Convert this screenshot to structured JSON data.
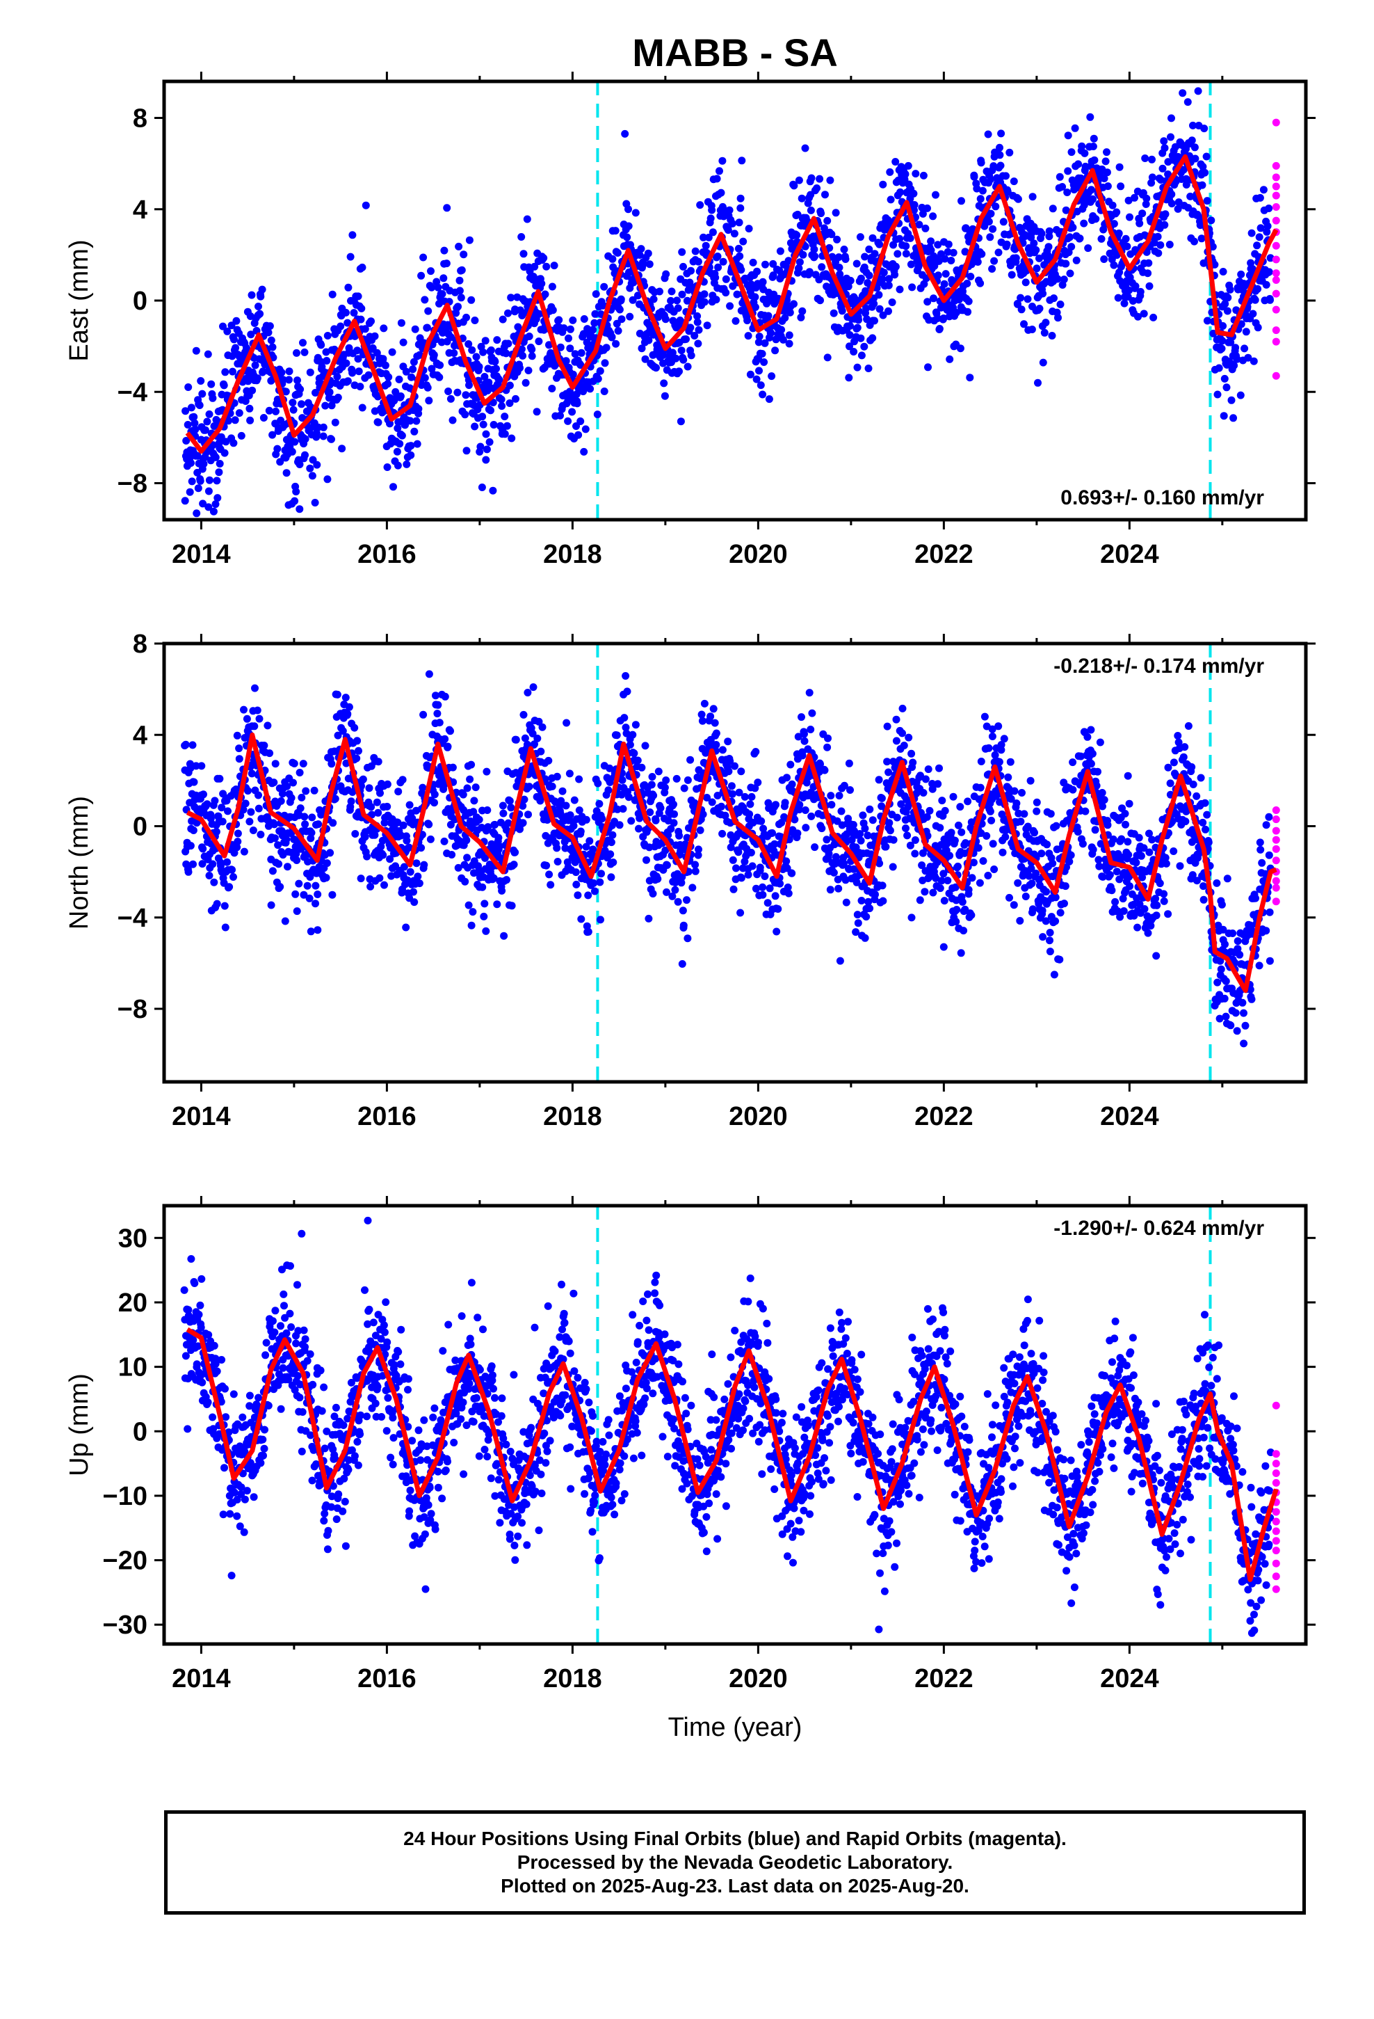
{
  "page_title": "MABB - SA",
  "colors": {
    "final_orbits": "#0000ff",
    "rapid_orbits": "#ff00ff",
    "model_fit": "#ff0000",
    "equipment_change": "#00e5ee",
    "frame": "#000000"
  },
  "footer": {
    "line1": "24 Hour Positions Using Final Orbits (blue) and Rapid Orbits (magenta).",
    "line2": "Processed by the Nevada Geodetic Laboratory.",
    "line3": "Plotted on 2025-Aug-23. Last data on 2025-Aug-20."
  },
  "chart_data": [
    {
      "type": "scatter",
      "name": "east",
      "ylabel": "East (mm)",
      "xlabel": "",
      "xlim": [
        2013.6,
        2025.9
      ],
      "ylim": [
        -9.6,
        9.6
      ],
      "xticks": [
        2014,
        2016,
        2018,
        2020,
        2022,
        2024
      ],
      "xtick_labels": [
        "2014",
        "2016",
        "2018",
        "2020",
        "2022",
        "2024"
      ],
      "yticks": [
        -8,
        -4,
        0,
        4,
        8
      ],
      "ytick_labels": [
        "−8",
        "−4",
        "0",
        "4",
        "8"
      ],
      "annotation": "0.693+/- 0.160 mm/yr",
      "annotation_position": "bottom-right",
      "vlines": [
        2018.27,
        2024.87
      ],
      "final_orbits_range": [
        2013.82,
        2025.52
      ],
      "rapid_orbits_x": 2025.58,
      "rapid_orbits_y": [
        7.8,
        5.9,
        5.4,
        5.0,
        4.6,
        4.1,
        3.5,
        3.0,
        2.4,
        1.8,
        1.2,
        0.9,
        0.3,
        -0.4,
        -1.3,
        -1.8,
        -3.3
      ],
      "model_fit": [
        [
          2013.85,
          -5.8
        ],
        [
          2014.0,
          -6.6
        ],
        [
          2014.2,
          -5.6
        ],
        [
          2014.4,
          -3.5
        ],
        [
          2014.62,
          -1.5
        ],
        [
          2014.8,
          -3.3
        ],
        [
          2015.0,
          -5.9
        ],
        [
          2015.2,
          -5.0
        ],
        [
          2015.45,
          -2.5
        ],
        [
          2015.65,
          -0.9
        ],
        [
          2015.85,
          -3.0
        ],
        [
          2016.05,
          -5.2
        ],
        [
          2016.25,
          -4.6
        ],
        [
          2016.45,
          -1.8
        ],
        [
          2016.65,
          -0.2
        ],
        [
          2016.85,
          -2.7
        ],
        [
          2017.05,
          -4.5
        ],
        [
          2017.25,
          -3.8
        ],
        [
          2017.45,
          -1.5
        ],
        [
          2017.63,
          0.4
        ],
        [
          2017.85,
          -2.6
        ],
        [
          2018.0,
          -3.8
        ],
        [
          2018.25,
          -2.2
        ],
        [
          2018.4,
          0.0
        ],
        [
          2018.6,
          2.2
        ],
        [
          2018.8,
          -0.2
        ],
        [
          2019.0,
          -2.1
        ],
        [
          2019.2,
          -1.2
        ],
        [
          2019.4,
          1.2
        ],
        [
          2019.6,
          2.9
        ],
        [
          2019.8,
          0.8
        ],
        [
          2020.0,
          -1.3
        ],
        [
          2020.2,
          -0.8
        ],
        [
          2020.4,
          2.0
        ],
        [
          2020.6,
          3.6
        ],
        [
          2020.8,
          1.2
        ],
        [
          2021.0,
          -0.6
        ],
        [
          2021.2,
          0.2
        ],
        [
          2021.4,
          2.8
        ],
        [
          2021.6,
          4.3
        ],
        [
          2021.8,
          1.5
        ],
        [
          2022.0,
          0.0
        ],
        [
          2022.2,
          1.0
        ],
        [
          2022.4,
          3.6
        ],
        [
          2022.6,
          5.0
        ],
        [
          2022.8,
          2.5
        ],
        [
          2023.0,
          0.8
        ],
        [
          2023.2,
          1.8
        ],
        [
          2023.4,
          4.2
        ],
        [
          2023.6,
          5.7
        ],
        [
          2023.8,
          3.0
        ],
        [
          2024.0,
          1.4
        ],
        [
          2024.2,
          2.6
        ],
        [
          2024.4,
          5.0
        ],
        [
          2024.6,
          6.3
        ],
        [
          2024.8,
          4.0
        ],
        [
          2024.87,
          1.5
        ],
        [
          2024.95,
          -1.4
        ],
        [
          2025.1,
          -1.5
        ],
        [
          2025.3,
          0.5
        ],
        [
          2025.5,
          2.5
        ],
        [
          2025.58,
          3.1
        ]
      ]
    },
    {
      "type": "scatter",
      "name": "north",
      "ylabel": "North (mm)",
      "xlabel": "",
      "xlim": [
        2013.6,
        2025.9
      ],
      "ylim": [
        -11.2,
        8.0
      ],
      "xticks": [
        2014,
        2016,
        2018,
        2020,
        2022,
        2024
      ],
      "xtick_labels": [
        "2014",
        "2016",
        "2018",
        "2020",
        "2022",
        "2024"
      ],
      "yticks": [
        -8,
        -4,
        0,
        4,
        8
      ],
      "ytick_labels": [
        "−8",
        "−4",
        "0",
        "4",
        "8"
      ],
      "annotation": "-0.218+/- 0.174 mm/yr",
      "annotation_position": "top-right",
      "vlines": [
        2018.27,
        2024.87
      ],
      "final_orbits_range": [
        2013.82,
        2025.52
      ],
      "rapid_orbits_x": 2025.58,
      "rapid_orbits_y": [
        0.7,
        0.3,
        -0.2,
        -0.6,
        -1.0,
        -1.5,
        -2.0,
        -2.4,
        -2.7,
        -3.3
      ],
      "model_fit": [
        [
          2013.85,
          0.6
        ],
        [
          2014.0,
          0.3
        ],
        [
          2014.25,
          -1.3
        ],
        [
          2014.4,
          0.8
        ],
        [
          2014.55,
          4.0
        ],
        [
          2014.75,
          0.6
        ],
        [
          2015.0,
          -0.1
        ],
        [
          2015.25,
          -1.5
        ],
        [
          2015.4,
          1.5
        ],
        [
          2015.55,
          3.8
        ],
        [
          2015.75,
          0.5
        ],
        [
          2016.0,
          -0.3
        ],
        [
          2016.25,
          -1.7
        ],
        [
          2016.4,
          0.8
        ],
        [
          2016.55,
          3.6
        ],
        [
          2016.8,
          0.0
        ],
        [
          2017.0,
          -0.7
        ],
        [
          2017.25,
          -2.0
        ],
        [
          2017.4,
          0.8
        ],
        [
          2017.55,
          3.4
        ],
        [
          2017.8,
          0.1
        ],
        [
          2018.0,
          -0.5
        ],
        [
          2018.2,
          -2.2
        ],
        [
          2018.4,
          0.5
        ],
        [
          2018.55,
          3.6
        ],
        [
          2018.8,
          0.2
        ],
        [
          2019.0,
          -0.6
        ],
        [
          2019.2,
          -2.0
        ],
        [
          2019.35,
          0.6
        ],
        [
          2019.5,
          3.3
        ],
        [
          2019.75,
          0.2
        ],
        [
          2020.0,
          -0.6
        ],
        [
          2020.2,
          -2.2
        ],
        [
          2020.35,
          0.6
        ],
        [
          2020.55,
          3.1
        ],
        [
          2020.8,
          -0.3
        ],
        [
          2021.0,
          -1.2
        ],
        [
          2021.2,
          -2.5
        ],
        [
          2021.35,
          0.3
        ],
        [
          2021.55,
          2.8
        ],
        [
          2021.8,
          -0.8
        ],
        [
          2022.0,
          -1.5
        ],
        [
          2022.2,
          -2.7
        ],
        [
          2022.35,
          0.0
        ],
        [
          2022.55,
          2.6
        ],
        [
          2022.8,
          -1.0
        ],
        [
          2023.0,
          -1.6
        ],
        [
          2023.2,
          -2.9
        ],
        [
          2023.35,
          -0.4
        ],
        [
          2023.55,
          2.4
        ],
        [
          2023.8,
          -1.6
        ],
        [
          2024.0,
          -1.8
        ],
        [
          2024.2,
          -3.2
        ],
        [
          2024.35,
          -0.6
        ],
        [
          2024.55,
          2.2
        ],
        [
          2024.8,
          -1.0
        ],
        [
          2024.87,
          -3.0
        ],
        [
          2024.92,
          -5.5
        ],
        [
          2025.05,
          -5.8
        ],
        [
          2025.25,
          -7.2
        ],
        [
          2025.4,
          -4.0
        ],
        [
          2025.52,
          -2.0
        ],
        [
          2025.58,
          -1.9
        ]
      ]
    },
    {
      "type": "scatter",
      "name": "up",
      "ylabel": "Up (mm)",
      "xlabel": "Time (year)",
      "xlim": [
        2013.6,
        2025.9
      ],
      "ylim": [
        -33.0,
        35.0
      ],
      "xticks": [
        2014,
        2016,
        2018,
        2020,
        2022,
        2024
      ],
      "xtick_labels": [
        "2014",
        "2016",
        "2018",
        "2020",
        "2022",
        "2024"
      ],
      "yticks": [
        -30,
        -20,
        -10,
        0,
        10,
        20,
        30
      ],
      "ytick_labels": [
        "−30",
        "−20",
        "−10",
        "0",
        "10",
        "20",
        "30"
      ],
      "annotation": "-1.290+/- 0.624 mm/yr",
      "annotation_position": "top-right",
      "vlines": [
        2018.27,
        2024.87
      ],
      "final_orbits_range": [
        2013.82,
        2025.52
      ],
      "rapid_orbits_x": 2025.58,
      "rapid_orbits_y": [
        4.0,
        -3.5,
        -5.0,
        -6.5,
        -8.0,
        -9.5,
        -11.0,
        -12.5,
        -14.0,
        -15.5,
        -17.0,
        -18.5,
        -20.5,
        -22.5,
        -24.5
      ],
      "model_fit": [
        [
          2013.85,
          15.8
        ],
        [
          2014.0,
          14.5
        ],
        [
          2014.2,
          2.5
        ],
        [
          2014.35,
          -7.3
        ],
        [
          2014.55,
          -3.0
        ],
        [
          2014.75,
          9.5
        ],
        [
          2014.9,
          14.2
        ],
        [
          2015.1,
          9.0
        ],
        [
          2015.35,
          -8.8
        ],
        [
          2015.55,
          -3.0
        ],
        [
          2015.75,
          9.0
        ],
        [
          2015.9,
          13.0
        ],
        [
          2016.1,
          5.0
        ],
        [
          2016.35,
          -10.0
        ],
        [
          2016.55,
          -4.0
        ],
        [
          2016.75,
          7.5
        ],
        [
          2016.88,
          11.8
        ],
        [
          2017.1,
          3.0
        ],
        [
          2017.35,
          -10.8
        ],
        [
          2017.55,
          -4.5
        ],
        [
          2017.75,
          6.0
        ],
        [
          2017.9,
          10.5
        ],
        [
          2018.1,
          2.0
        ],
        [
          2018.3,
          -9.3
        ],
        [
          2018.5,
          -3.0
        ],
        [
          2018.7,
          8.0
        ],
        [
          2018.9,
          13.6
        ],
        [
          2019.1,
          5.0
        ],
        [
          2019.35,
          -9.5
        ],
        [
          2019.55,
          -4.5
        ],
        [
          2019.75,
          7.0
        ],
        [
          2019.9,
          12.5
        ],
        [
          2020.1,
          4.0
        ],
        [
          2020.35,
          -10.8
        ],
        [
          2020.55,
          -4.0
        ],
        [
          2020.75,
          6.5
        ],
        [
          2020.9,
          11.2
        ],
        [
          2021.1,
          2.0
        ],
        [
          2021.35,
          -12.0
        ],
        [
          2021.55,
          -5.0
        ],
        [
          2021.75,
          5.0
        ],
        [
          2021.9,
          10.0
        ],
        [
          2022.1,
          1.0
        ],
        [
          2022.35,
          -13.0
        ],
        [
          2022.55,
          -6.0
        ],
        [
          2022.75,
          4.0
        ],
        [
          2022.9,
          8.5
        ],
        [
          2023.1,
          0.0
        ],
        [
          2023.35,
          -14.8
        ],
        [
          2023.55,
          -7.0
        ],
        [
          2023.75,
          3.0
        ],
        [
          2023.9,
          7.2
        ],
        [
          2024.1,
          -1.0
        ],
        [
          2024.35,
          -16.0
        ],
        [
          2024.55,
          -8.0
        ],
        [
          2024.75,
          2.0
        ],
        [
          2024.87,
          5.8
        ],
        [
          2024.95,
          0.0
        ],
        [
          2025.1,
          -5.0
        ],
        [
          2025.3,
          -23.0
        ],
        [
          2025.45,
          -15.0
        ],
        [
          2025.58,
          -9.0
        ]
      ]
    }
  ]
}
